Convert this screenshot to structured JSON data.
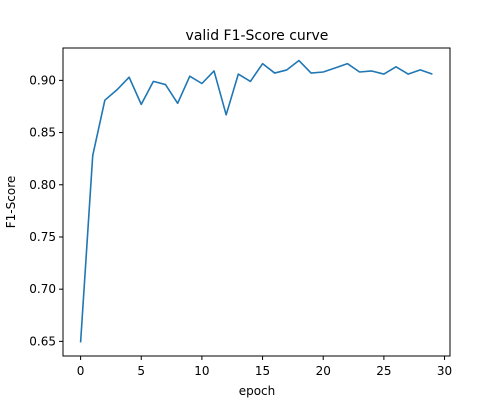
{
  "chart_data": {
    "type": "line",
    "title": "valid F1-Score curve",
    "xlabel": "epoch",
    "ylabel": "F1-Score",
    "xlim": [
      -1.45,
      30.45
    ],
    "ylim": [
      0.636,
      0.931
    ],
    "grid": false,
    "legend": "none",
    "x_ticks": [
      0,
      5,
      10,
      15,
      20,
      25,
      30
    ],
    "x_tick_labels": [
      "0",
      "5",
      "10",
      "15",
      "20",
      "25",
      "30"
    ],
    "y_ticks": [
      0.65,
      0.7,
      0.75,
      0.8,
      0.85,
      0.9
    ],
    "y_tick_labels": [
      "0.65",
      "0.70",
      "0.75",
      "0.80",
      "0.85",
      "0.90"
    ],
    "series": [
      {
        "color": "#1f77b4",
        "x": [
          0,
          1,
          2,
          3,
          4,
          5,
          6,
          7,
          8,
          9,
          10,
          11,
          12,
          13,
          14,
          15,
          16,
          17,
          18,
          19,
          20,
          21,
          22,
          23,
          24,
          25,
          26,
          27,
          28,
          29
        ],
        "y": [
          0.649,
          0.828,
          0.881,
          0.891,
          0.903,
          0.877,
          0.899,
          0.896,
          0.878,
          0.904,
          0.897,
          0.909,
          0.867,
          0.906,
          0.899,
          0.916,
          0.907,
          0.91,
          0.919,
          0.907,
          0.908,
          0.912,
          0.916,
          0.908,
          0.909,
          0.906,
          0.913,
          0.906,
          0.91,
          0.906
        ]
      }
    ]
  }
}
